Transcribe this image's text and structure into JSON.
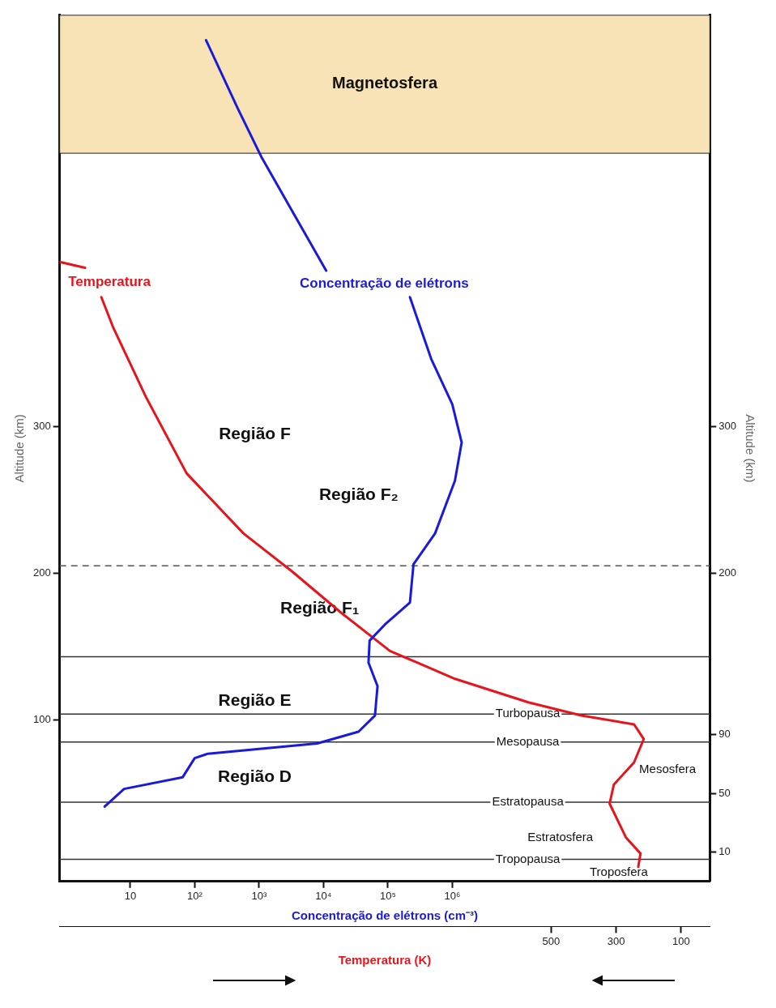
{
  "chart_data": {
    "type": "line",
    "xlabel": "Concentração de elétrons (cm⁻³)",
    "x2label": "Temperatura (K)",
    "ylabel": "Altitude (km)",
    "y2label": "Altitude (km)",
    "log": "x",
    "xlim": [
      0.8,
      10000000000
    ],
    "xticks": [
      10,
      {
        "value": 100,
        "label": "10²"
      },
      {
        "value": 1000,
        "label": "10³"
      },
      {
        "value": 10000,
        "label": "10⁴"
      },
      {
        "value": 100000,
        "label": "10⁵"
      },
      {
        "value": 1000000,
        "label": "10⁶"
      }
    ],
    "x2lim": [
      2010,
      12
    ],
    "x2ticks": [
      500,
      300,
      100
    ],
    "ylim": [
      -10,
      580
    ],
    "yticks": [
      100,
      200,
      300
    ],
    "y2lim": [
      -10,
      580
    ],
    "y2ticks": [
      10,
      50,
      90,
      200,
      300
    ],
    "grid": false,
    "legend": false,
    "marker": "none",
    "line_style": "solid",
    "series": [
      {
        "name": "Concentração de elétrons",
        "color": "#1a1adb",
        "x": [
          4,
          8,
          65,
          100,
          160,
          8000,
          35000,
          63000,
          69000,
          50000,
          52000,
          90000,
          220000,
          250000,
          540000,
          1100000,
          1400000,
          1000000,
          470000,
          220000,
          null,
          11000,
          1100,
          460,
          150
        ],
        "values": [
          41,
          53,
          61,
          74,
          77,
          84,
          92,
          103,
          123,
          139,
          154,
          165,
          180,
          206,
          227,
          263,
          289,
          315,
          346,
          388,
          null,
          406,
          483,
          517,
          563
        ]
      },
      {
        "name": "Temperatura",
        "color": "#e8141c",
        "axis": "x2",
        "x": [
          232,
          225,
          270,
          320,
          307,
          245,
          215,
          245,
          407,
          570,
          795,
          995,
          1145,
          1295,
          1445,
          1620,
          1745,
          1845,
          1882,
          null,
          1932,
          2010
        ],
        "values": [
          0,
          9,
          20,
          43,
          56,
          71,
          87,
          97,
          103,
          112,
          128,
          147,
          173,
          201,
          227,
          268,
          320,
          367,
          388,
          null,
          408,
          412
        ]
      }
    ],
    "bands": [
      {
        "axis": "y",
        "from": 486,
        "to": 580,
        "label": "Magnetosfera",
        "color": "#f7e3b5"
      }
    ],
    "ref_lines": [
      {
        "axis": "y",
        "value": 205,
        "label": null,
        "line_style": "dashed",
        "color": "#555555"
      },
      {
        "axis": "y",
        "value": 143,
        "label": null,
        "color": "#333333"
      },
      {
        "axis": "y",
        "value": 104,
        "label": "Turbopausa",
        "color": "#333333"
      },
      {
        "axis": "y",
        "value": 85,
        "label": "Mesopausa",
        "color": "#333333"
      },
      {
        "axis": "y",
        "value": 44,
        "label": "Estratopausa",
        "color": "#333333"
      },
      {
        "axis": "y",
        "value": 5,
        "label": "Tropopausa",
        "color": "#333333"
      }
    ],
    "annotations": [
      "Região F",
      "Região F₂",
      "Região F₁",
      "Região E",
      "Região D",
      "Mesosfera",
      "Estratosfera",
      "Troposfera"
    ]
  }
}
